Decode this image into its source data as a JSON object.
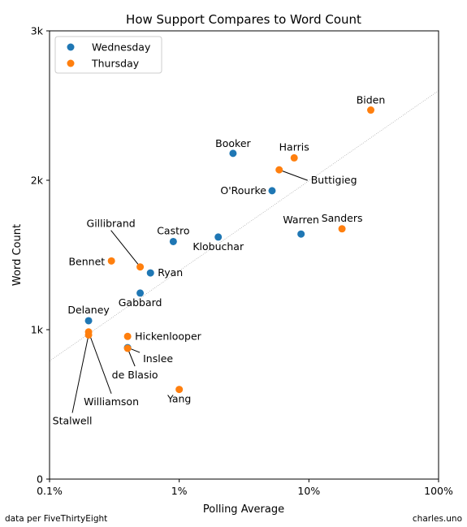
{
  "chart_data": {
    "type": "scatter",
    "title": "How Support Compares to Word Count",
    "xlabel": "Polling Average",
    "ylabel": "Word Count",
    "x_scale": "log",
    "xlim": [
      0.1,
      100
    ],
    "ylim": [
      0,
      3000
    ],
    "x_ticks": [
      {
        "value": 0.1,
        "label": "0.1%"
      },
      {
        "value": 1,
        "label": "1%"
      },
      {
        "value": 10,
        "label": "10%"
      },
      {
        "value": 100,
        "label": "100%"
      }
    ],
    "y_ticks": [
      {
        "value": 0,
        "label": "0"
      },
      {
        "value": 1000,
        "label": "1k"
      },
      {
        "value": 2000,
        "label": "2k"
      },
      {
        "value": 3000,
        "label": "3k"
      }
    ],
    "legend_position": "top-left",
    "trend_line": {
      "x": [
        0.1,
        100
      ],
      "y": [
        790,
        2600
      ]
    },
    "series": [
      {
        "name": "Wednesday",
        "color": "#1f77b4",
        "points": [
          {
            "label": "Booker",
            "x": 2.6,
            "y": 2180
          },
          {
            "label": "O'Rourke",
            "x": 5.2,
            "y": 1930
          },
          {
            "label": "Warren",
            "x": 8.7,
            "y": 1640
          },
          {
            "label": "Klobuchar",
            "x": 2.0,
            "y": 1620
          },
          {
            "label": "Castro",
            "x": 0.9,
            "y": 1590
          },
          {
            "label": "Ryan",
            "x": 0.6,
            "y": 1380
          },
          {
            "label": "Gabbard",
            "x": 0.5,
            "y": 1245
          },
          {
            "label": "Delaney",
            "x": 0.2,
            "y": 1060
          },
          {
            "label": "Inslee",
            "x": 0.4,
            "y": 880
          }
        ]
      },
      {
        "name": "Thursday",
        "color": "#ff7f0e",
        "points": [
          {
            "label": "Biden",
            "x": 30,
            "y": 2470
          },
          {
            "label": "Harris",
            "x": 7.7,
            "y": 2150
          },
          {
            "label": "Buttigieg",
            "x": 5.9,
            "y": 2070
          },
          {
            "label": "Sanders",
            "x": 18,
            "y": 1675
          },
          {
            "label": "Gillibrand",
            "x": 0.5,
            "y": 1420
          },
          {
            "label": "Bennet",
            "x": 0.3,
            "y": 1460
          },
          {
            "label": "Hickenlooper",
            "x": 0.4,
            "y": 955
          },
          {
            "label": "de Blasio",
            "x": 0.4,
            "y": 875
          },
          {
            "label": "Williamson",
            "x": 0.2,
            "y": 985
          },
          {
            "label": "Stalwell",
            "x": 0.2,
            "y": 965
          },
          {
            "label": "Yang",
            "x": 1.0,
            "y": 600
          }
        ]
      }
    ]
  },
  "footer": {
    "source": "data per FiveThirtyEight",
    "credit": "charles.uno"
  }
}
